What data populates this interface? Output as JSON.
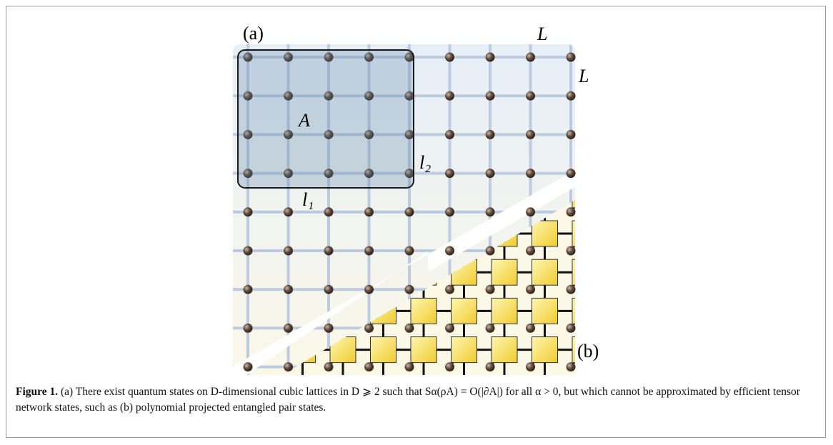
{
  "figure": {
    "panel_labels": {
      "a": "(a)",
      "b": "(b)"
    },
    "lattice_labels": {
      "L_top": "L",
      "L_right": "L",
      "region": "A",
      "l1": "l₁",
      "l2": "l₂"
    },
    "caption": {
      "label": "Figure 1.",
      "text": "(a) There exist quantum states on D-dimensional cubic lattices in D ⩾ 2 such that Sα(ρA) = O(|∂A|) for all α > 0, but which cannot be approximated by efficient tensor network states, such as (b) polynomial projected entangled pair states."
    }
  }
}
